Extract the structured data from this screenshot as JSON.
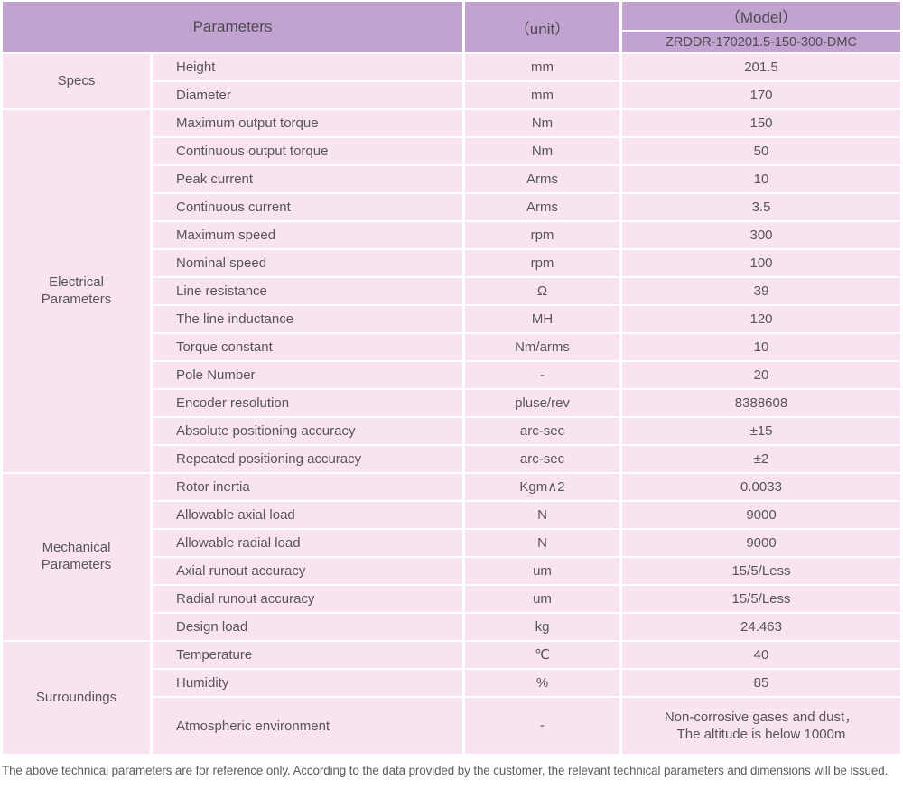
{
  "colors": {
    "header_bg": "#c2a2ce",
    "row_bg": "#fae3f0",
    "text": "#55555a"
  },
  "header": {
    "parameters_label": "Parameters",
    "unit_label": "（unit）",
    "model_label": "（Model）",
    "model_value": "ZRDDR-170201.5-150-300-DMC"
  },
  "sections": [
    {
      "group": "Specs",
      "rows": [
        {
          "param": "Height",
          "unit": "mm",
          "value": "201.5"
        },
        {
          "param": "Diameter",
          "unit": "mm",
          "value": "170"
        }
      ]
    },
    {
      "group": "Electrical\nParameters",
      "rows": [
        {
          "param": "Maximum output torque",
          "unit": "Nm",
          "value": "150"
        },
        {
          "param": "Continuous output torque",
          "unit": "Nm",
          "value": "50"
        },
        {
          "param": "Peak current",
          "unit": "Arms",
          "value": "10"
        },
        {
          "param": "Continuous current",
          "unit": "Arms",
          "value": "3.5"
        },
        {
          "param": "Maximum speed",
          "unit": "rpm",
          "value": "300"
        },
        {
          "param": "Nominal speed",
          "unit": "rpm",
          "value": "100"
        },
        {
          "param": "Line resistance",
          "unit": "Ω",
          "value": "39"
        },
        {
          "param": "The line inductance",
          "unit": "MH",
          "value": "120"
        },
        {
          "param": "Torque constant",
          "unit": "Nm/arms",
          "value": "10"
        },
        {
          "param": "Pole Number",
          "unit": "-",
          "value": "20"
        },
        {
          "param": "Encoder resolution",
          "unit": "pluse/rev",
          "value": "8388608"
        },
        {
          "param": "Absolute positioning accuracy",
          "unit": "arc-sec",
          "value": "±15"
        },
        {
          "param": "Repeated positioning accuracy",
          "unit": "arc-sec",
          "value": "±2"
        }
      ]
    },
    {
      "group": "Mechanical\nParameters",
      "rows": [
        {
          "param": "Rotor inertia",
          "unit": "Kgm∧2",
          "value": "0.0033"
        },
        {
          "param": "Allowable axial load",
          "unit": "N",
          "value": "9000"
        },
        {
          "param": "Allowable radial load",
          "unit": "N",
          "value": "9000"
        },
        {
          "param": "Axial runout accuracy",
          "unit": "um",
          "value": "15/5/Less"
        },
        {
          "param": "Radial runout accuracy",
          "unit": "um",
          "value": "15/5/Less"
        },
        {
          "param": "Design load",
          "unit": "kg",
          "value": "24.463"
        }
      ]
    },
    {
      "group": "Surroundings",
      "rows": [
        {
          "param": "Temperature",
          "unit": "℃",
          "value": "40"
        },
        {
          "param": "Humidity",
          "unit": "%",
          "value": "85"
        },
        {
          "param": "Atmospheric environment",
          "unit": "-",
          "value": "Non-corrosive gases and dust，\nThe altitude is below 1000m",
          "tall": true
        }
      ]
    }
  ],
  "footer": {
    "note": "The above technical parameters are for reference only. According to the data provided by the customer, the relevant technical parameters and dimensions will be issued."
  }
}
